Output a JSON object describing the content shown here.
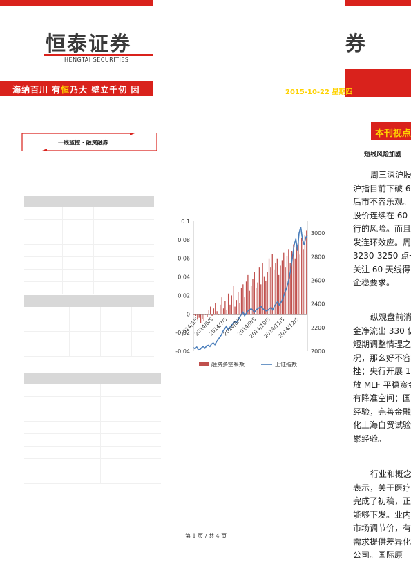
{
  "header": {
    "logo_cn": "恒泰证券",
    "logo_en": "HENGTAI SECURITIES",
    "right_logo_fragment": "券",
    "slogan_a": "海纳百川 有",
    "slogan_b": "恒",
    "slogan_c": "乃大  壁立千仞 因",
    "date": "2015-10-22 星期四"
  },
  "left": {
    "monitor_label": "一线监控 · 融资融券"
  },
  "chart_data": {
    "type": "bar+line",
    "x_tick_labels": [
      "2014/5/5",
      "2014/6/5",
      "2014/7/5",
      "2014/8/5",
      "2014/9/5",
      "2014/10/5",
      "2014/11/5",
      "2014/12/5"
    ],
    "left_axis": {
      "ticks": [
        "0.1",
        "0.08",
        "0.06",
        "0.04",
        "0.02",
        "0",
        "-0.02",
        "-0.04"
      ],
      "range": [
        -0.04,
        0.1
      ]
    },
    "right_axis": {
      "ticks": [
        "3000",
        "2800",
        "2600",
        "2400",
        "2200",
        "2000"
      ],
      "range": [
        2000,
        3100
      ]
    },
    "series": [
      {
        "name": "融资多空系数",
        "type": "bar",
        "color": "#c0504d",
        "values": [
          0.0,
          -0.002,
          -0.006,
          -0.004,
          -0.01,
          -0.005,
          -0.008,
          0.0,
          -0.003,
          0.004,
          0.008,
          -0.002,
          0.006,
          0.012,
          0.003,
          0.0,
          0.01,
          0.018,
          0.006,
          0.014,
          0.004,
          0.022,
          0.01,
          0.02,
          0.03,
          0.008,
          0.015,
          0.024,
          0.012,
          0.028,
          0.032,
          0.018,
          0.035,
          0.042,
          0.025,
          0.03,
          0.038,
          0.045,
          0.028,
          0.034,
          0.05,
          0.032,
          0.055,
          0.04,
          0.036,
          0.045,
          0.06,
          0.05,
          0.065,
          0.048,
          0.055,
          0.06,
          0.042,
          0.052,
          0.058,
          0.066,
          0.05,
          0.062,
          0.07,
          0.055,
          0.068,
          0.075,
          0.06,
          0.072,
          0.078,
          0.064,
          0.082,
          0.07,
          0.085,
          0.09
        ]
      },
      {
        "name": "上证指数",
        "type": "line",
        "color": "#4a7ebb",
        "values": [
          2030,
          2020,
          2035,
          2010,
          2015,
          2030,
          2040,
          2025,
          2045,
          2050,
          2040,
          2060,
          2070,
          2055,
          2080,
          2100,
          2120,
          2140,
          2170,
          2190,
          2210,
          2180,
          2200,
          2220,
          2230,
          2250,
          2240,
          2260,
          2290,
          2310,
          2330,
          2300,
          2320,
          2340,
          2350,
          2360,
          2345,
          2330,
          2350,
          2360,
          2370,
          2380,
          2360,
          2350,
          2340,
          2345,
          2360,
          2370,
          2350,
          2380,
          2400,
          2420,
          2390,
          2410,
          2440,
          2480,
          2520,
          2560,
          2620,
          2700,
          2800,
          2900,
          2950,
          2850,
          3000,
          3050,
          2950,
          2900,
          2960,
          2980
        ]
      }
    ],
    "legend": [
      "融资多空系数",
      "上证指数"
    ],
    "legend_position": "bottom"
  },
  "right": {
    "section_title": "本刊视点",
    "subtitle": "短线风险加剧",
    "para1": [
      "周三深沪股",
      "沪指目前下破 6",
      "后市不容乐观。",
      "股价连续在 60 ",
      "行的风险。而且",
      "发连环效应。周",
      "3230-3250 点一",
      "关注 60 天线得",
      "企稳要求。"
    ],
    "para2": [
      "纵观盘前消",
      "金净流出 330 亿",
      "短期调整情理之",
      "况，那么好不容",
      "挫；央行开展 1",
      "放 MLF 平稳资金",
      "有降准空间；国",
      "经验，完善金融",
      "化上海自贸试验",
      "累经验。"
    ],
    "para3": [
      "行业和概念",
      "表示，关于医疗",
      "完成了初稿，正",
      "能够下发。业内",
      "市场调节价，有",
      "需求提供差异化",
      "公司。国际原"
    ]
  },
  "footer": {
    "page": "第 1 页 / 共 4 页"
  }
}
